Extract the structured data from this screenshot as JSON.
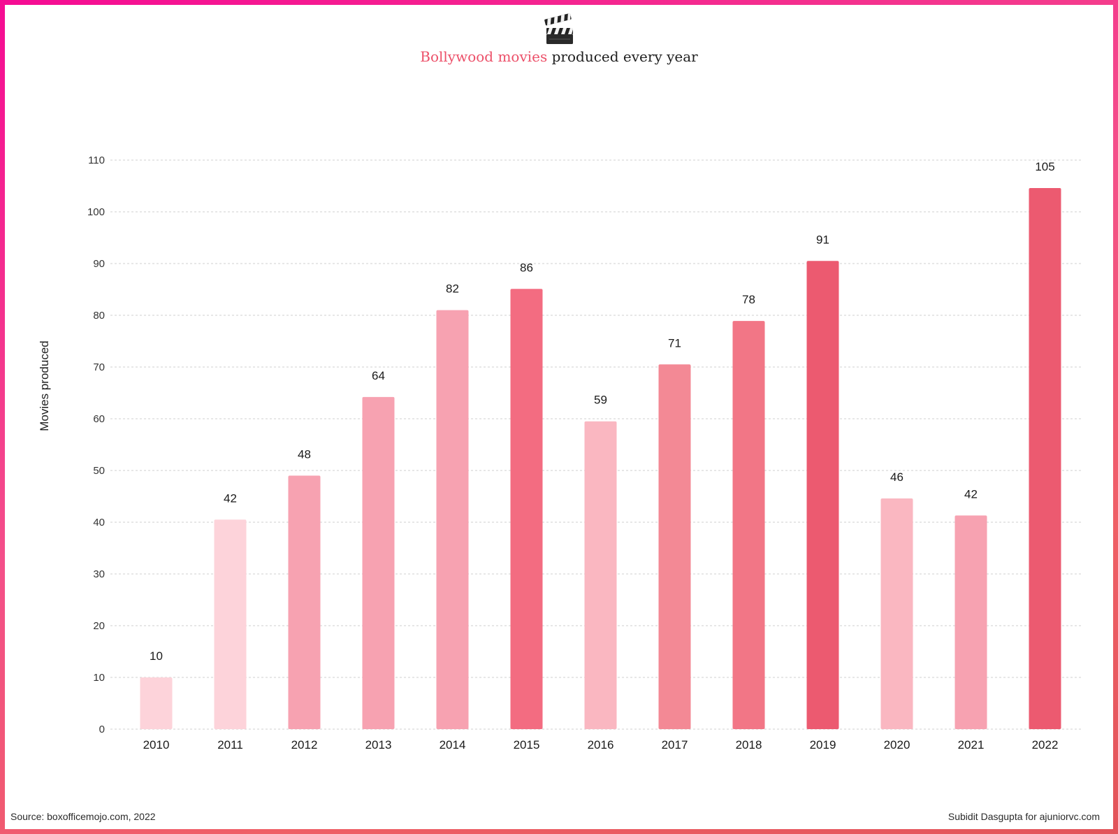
{
  "header": {
    "icon": "clapperboard-icon",
    "title_highlight": "Bollywood movies",
    "title_rest": " produced every year"
  },
  "chart_data": {
    "type": "bar",
    "title": "Bollywood movies produced every year",
    "xlabel": "",
    "ylabel": "Movies produced",
    "categories": [
      "2010",
      "2011",
      "2012",
      "2013",
      "2014",
      "2015",
      "2016",
      "2017",
      "2018",
      "2019",
      "2020",
      "2021",
      "2022"
    ],
    "values": [
      10,
      42,
      48,
      64,
      82,
      86,
      59,
      71,
      78,
      91,
      46,
      42,
      105
    ],
    "plot_values": [
      10,
      40.5,
      49,
      64.2,
      81,
      85.1,
      59.5,
      70.5,
      78.9,
      90.5,
      44.6,
      41.3,
      104.6
    ],
    "colors": [
      "#fdd3da",
      "#fdd3da",
      "#f7a2b1",
      "#f7a2b1",
      "#f7a2b1",
      "#f36c81",
      "#fab7c1",
      "#f38995",
      "#f27686",
      "#ec5a70",
      "#fab7c1",
      "#f7a2b1",
      "#ec5a70"
    ],
    "ylim": [
      0,
      110
    ],
    "yticks": [
      0,
      10,
      20,
      30,
      40,
      50,
      60,
      70,
      80,
      90,
      100,
      110
    ],
    "grid": true,
    "legend": "none"
  },
  "footer": {
    "source": "Source: boxofficemojo.com, 2022",
    "credit": "Subidit Dasgupta for ajuniorvc.com"
  }
}
